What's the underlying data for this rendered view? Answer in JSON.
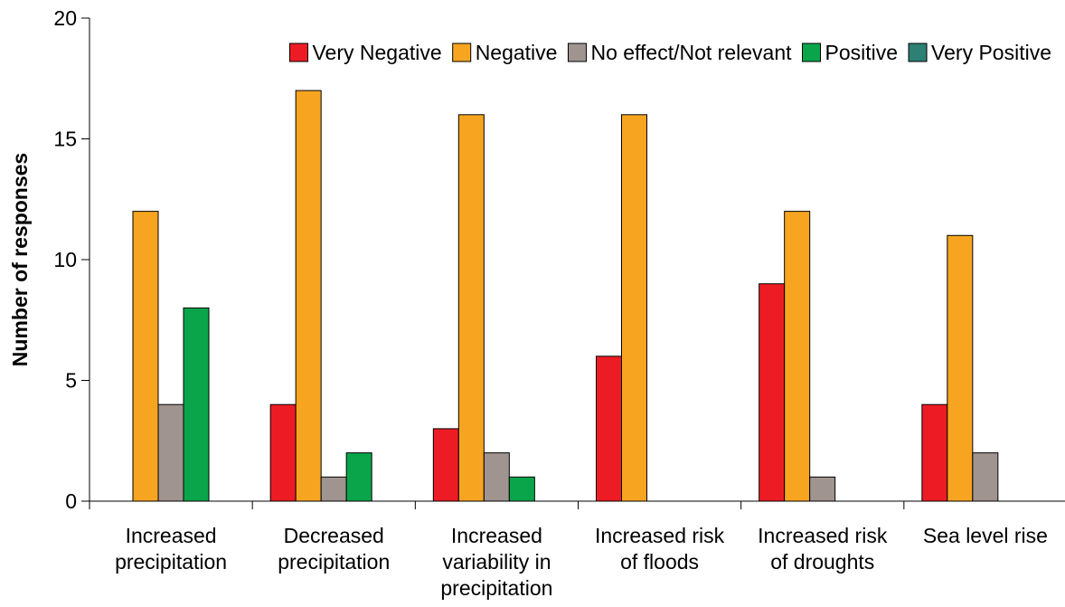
{
  "chart_data": {
    "type": "bar",
    "title": "",
    "xlabel": "",
    "ylabel": "Number of responses",
    "ylim": [
      0,
      20
    ],
    "yticks": [
      0,
      5,
      10,
      15,
      20
    ],
    "grid": false,
    "legend_placement": "top-right",
    "categories": [
      [
        "Increased",
        "precipitation"
      ],
      [
        "Decreased",
        "precipitation"
      ],
      [
        "Increased",
        "variability in",
        "precipitation"
      ],
      [
        "Increased risk",
        "of floods"
      ],
      [
        "Increased risk",
        "of droughts"
      ],
      [
        "Sea level rise"
      ]
    ],
    "series": [
      {
        "name": "Very Negative",
        "color": "#ed1c24",
        "values": [
          0,
          4,
          3,
          6,
          9,
          4
        ]
      },
      {
        "name": "Negative",
        "color": "#f7a520",
        "values": [
          12,
          17,
          16,
          16,
          12,
          11
        ]
      },
      {
        "name": "No effect/Not relevant",
        "color": "#a09490",
        "values": [
          4,
          1,
          2,
          0,
          1,
          2
        ]
      },
      {
        "name": "Positive",
        "color": "#0aa54a",
        "values": [
          8,
          2,
          1,
          0,
          0,
          0
        ]
      },
      {
        "name": "Very Positive",
        "color": "#2e7f74",
        "values": [
          0,
          0,
          0,
          0,
          0,
          0
        ]
      }
    ]
  }
}
